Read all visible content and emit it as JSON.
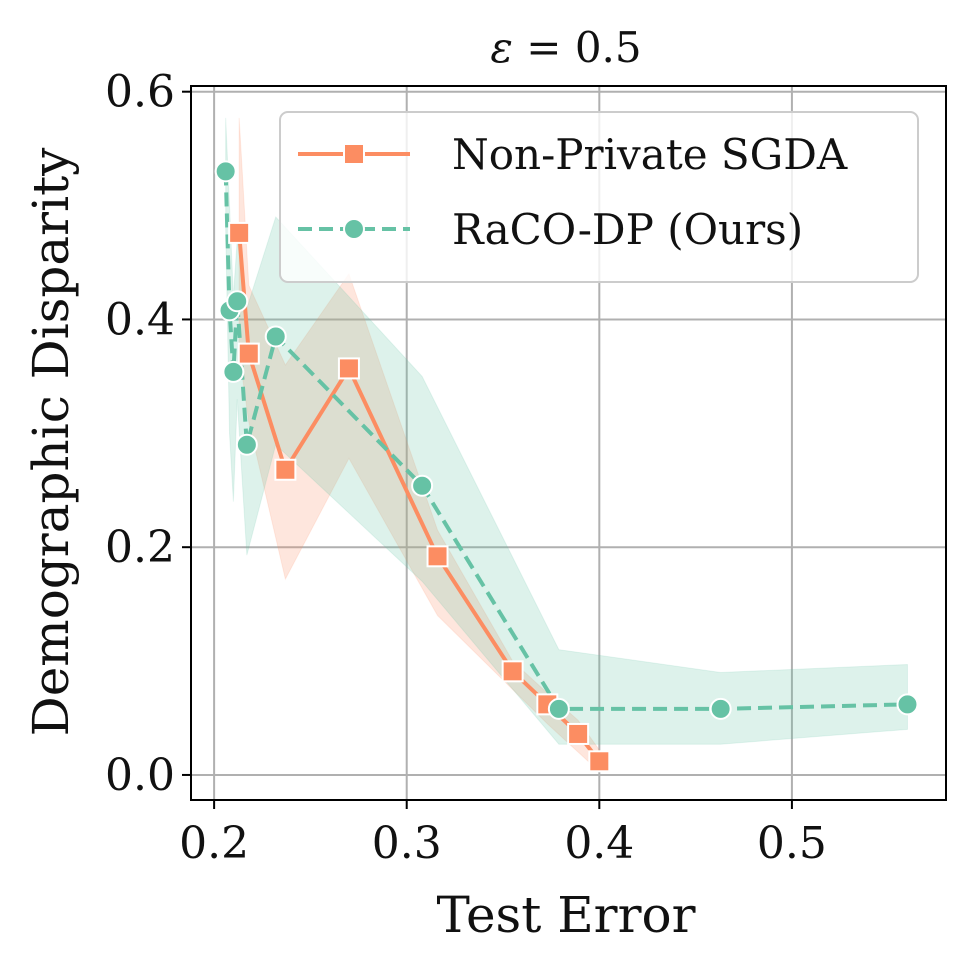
{
  "chart_data": {
    "type": "line",
    "title": {
      "symbol": "ε",
      "rest": " = 0.5"
    },
    "xlabel": "Test Error",
    "ylabel": "Demographic Disparity",
    "xlim": [
      0.188,
      0.58
    ],
    "ylim": [
      -0.022,
      0.605
    ],
    "xticks": [
      0.2,
      0.3,
      0.4,
      0.5
    ],
    "xtick_labels": [
      "0.2",
      "0.3",
      "0.4",
      "0.5"
    ],
    "yticks": [
      0.0,
      0.2,
      0.4,
      0.6
    ],
    "ytick_labels": [
      "0.0",
      "0.2",
      "0.4",
      "0.6"
    ],
    "grid": true,
    "legend_position": "top-right",
    "series": [
      {
        "name": "Non-Private SGDA",
        "color": "#fc8d62",
        "marker": "square",
        "linestyle": "solid",
        "points": [
          {
            "x": 0.213,
            "y": 0.476
          },
          {
            "x": 0.218,
            "y": 0.37
          },
          {
            "x": 0.237,
            "y": 0.268
          },
          {
            "x": 0.27,
            "y": 0.357
          },
          {
            "x": 0.316,
            "y": 0.192
          },
          {
            "x": 0.355,
            "y": 0.091
          },
          {
            "x": 0.373,
            "y": 0.062
          },
          {
            "x": 0.389,
            "y": 0.036
          },
          {
            "x": 0.4,
            "y": 0.012
          }
        ],
        "band_upper": [
          0.577,
          0.43,
          0.36,
          0.44,
          0.215,
          0.1,
          0.072,
          0.048,
          0.022
        ],
        "band_lower": [
          0.37,
          0.31,
          0.172,
          0.278,
          0.14,
          0.075,
          0.045,
          0.02,
          0.003
        ]
      },
      {
        "name": "RaCO-DP (Ours)",
        "color": "#66c2a5",
        "marker": "circle",
        "linestyle": "dashed",
        "points": [
          {
            "x": 0.206,
            "y": 0.53
          },
          {
            "x": 0.208,
            "y": 0.408
          },
          {
            "x": 0.21,
            "y": 0.354
          },
          {
            "x": 0.212,
            "y": 0.416
          },
          {
            "x": 0.217,
            "y": 0.29
          },
          {
            "x": 0.232,
            "y": 0.385
          },
          {
            "x": 0.308,
            "y": 0.254
          },
          {
            "x": 0.379,
            "y": 0.058
          },
          {
            "x": 0.463,
            "y": 0.058
          },
          {
            "x": 0.56,
            "y": 0.062
          }
        ],
        "band_upper": [
          0.577,
          0.5,
          0.42,
          0.47,
          0.41,
          0.49,
          0.35,
          0.11,
          0.09,
          0.097
        ],
        "band_lower": [
          0.48,
          0.3,
          0.24,
          0.33,
          0.193,
          0.29,
          0.17,
          0.027,
          0.027,
          0.04
        ]
      }
    ]
  }
}
